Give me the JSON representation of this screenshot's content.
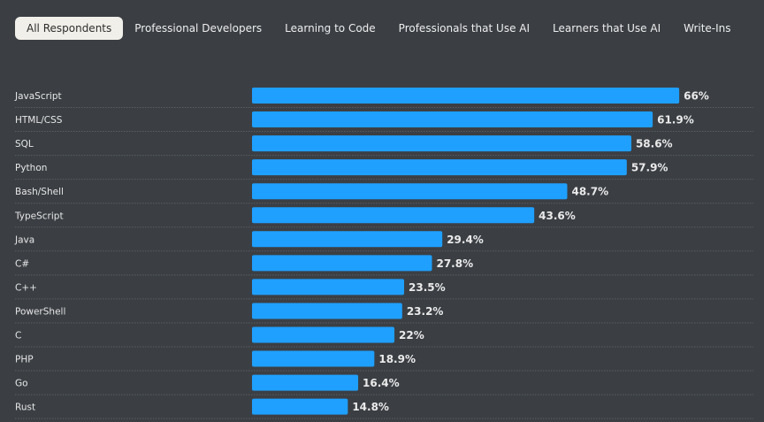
{
  "tabs": [
    {
      "label": "All Respondents",
      "active": true
    },
    {
      "label": "Professional Developers",
      "active": false
    },
    {
      "label": "Learning to Code",
      "active": false
    },
    {
      "label": "Professionals that Use AI",
      "active": false
    },
    {
      "label": "Learners that Use AI",
      "active": false
    },
    {
      "label": "Write-Ins",
      "active": false
    }
  ],
  "colors": {
    "bar": "#1fa0ff",
    "background": "#3b3f44",
    "active_tab": "#f1efe9"
  },
  "chart_data": {
    "type": "bar",
    "orientation": "horizontal",
    "categories": [
      "JavaScript",
      "HTML/CSS",
      "SQL",
      "Python",
      "Bash/Shell",
      "TypeScript",
      "Java",
      "C#",
      "C++",
      "PowerShell",
      "C",
      "PHP",
      "Go",
      "Rust"
    ],
    "values": [
      66,
      61.9,
      58.6,
      57.9,
      48.7,
      43.6,
      29.4,
      27.8,
      23.5,
      23.2,
      22,
      18.9,
      16.4,
      14.8
    ],
    "value_labels": [
      "66%",
      "61.9%",
      "58.6%",
      "57.9%",
      "48.7%",
      "43.6%",
      "29.4%",
      "27.8%",
      "23.5%",
      "23.2%",
      "22%",
      "18.9%",
      "16.4%",
      "14.8%"
    ],
    "xlim": [
      0,
      100
    ],
    "grid": false
  }
}
